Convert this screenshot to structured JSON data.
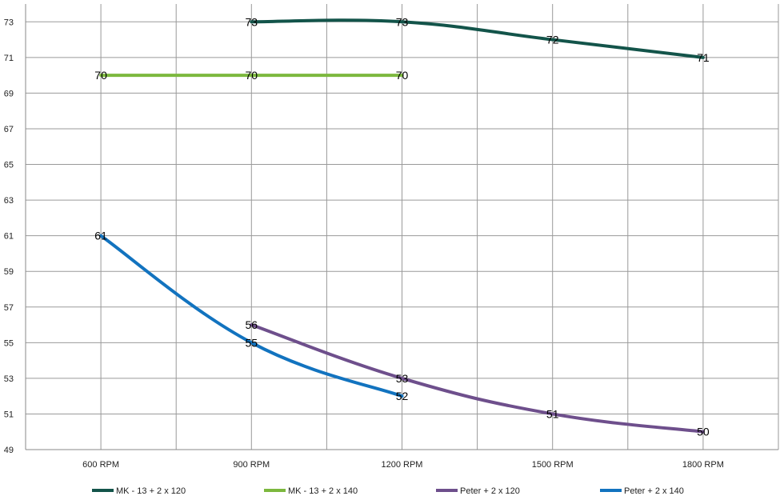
{
  "chart_data": {
    "type": "line",
    "categories": [
      "600 RPM",
      "900 RPM",
      "1200 RPM",
      "1500 RPM",
      "1800 RPM"
    ],
    "ylim": [
      49,
      74
    ],
    "yticks": [
      49,
      51,
      53,
      55,
      57,
      59,
      61,
      63,
      65,
      67,
      69,
      71,
      73
    ],
    "grid": true,
    "legend_position": "bottom",
    "series": [
      {
        "name": "MK - 13 + 2 x 120",
        "color": "#13544a",
        "values": [
          null,
          73,
          73,
          72,
          71
        ]
      },
      {
        "name": "MK - 13 + 2 x 140",
        "color": "#7cb83e",
        "values": [
          70,
          70,
          70,
          null,
          null
        ]
      },
      {
        "name": "Peter + 2 x 120",
        "color": "#6e4f8c",
        "values": [
          null,
          56,
          53,
          51,
          50
        ]
      },
      {
        "name": "Peter + 2 x 140",
        "color": "#1273bf",
        "values": [
          61,
          55,
          52,
          null,
          null
        ]
      }
    ]
  }
}
